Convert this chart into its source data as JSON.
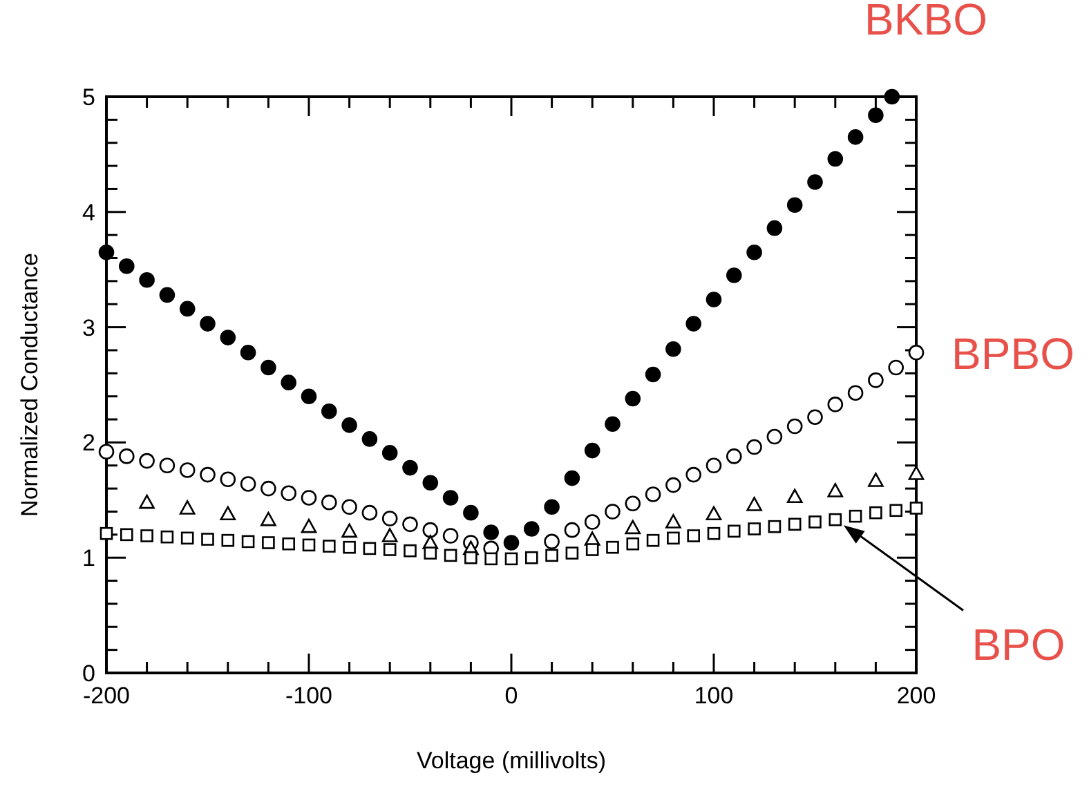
{
  "chart_data": {
    "type": "scatter",
    "xlabel": "Voltage (millivolts)",
    "ylabel": "Normalized Conductance",
    "xlim": [
      -200,
      200
    ],
    "ylim": [
      0,
      5
    ],
    "xticks": [
      -200,
      {
        "value": -180,
        "label": null
      },
      {
        "value": -160,
        "label": null
      },
      {
        "value": -140,
        "label": null
      },
      {
        "value": -120,
        "label": null
      },
      -100,
      {
        "value": -80,
        "label": null
      },
      {
        "value": -60,
        "label": null
      },
      {
        "value": -40,
        "label": null
      },
      {
        "value": -20,
        "label": null
      },
      0,
      {
        "value": 20,
        "label": null
      },
      {
        "value": 40,
        "label": null
      },
      {
        "value": 60,
        "label": null
      },
      {
        "value": 80,
        "label": null
      },
      100,
      {
        "value": 120,
        "label": null
      },
      {
        "value": 140,
        "label": null
      },
      {
        "value": 160,
        "label": null
      },
      {
        "value": 180,
        "label": null
      },
      200
    ],
    "yticks": [
      0,
      {
        "value": 0.2,
        "label": null
      },
      {
        "value": 0.4,
        "label": null
      },
      {
        "value": 0.6,
        "label": null
      },
      {
        "value": 0.8,
        "label": null
      },
      1,
      {
        "value": 1.2,
        "label": null
      },
      {
        "value": 1.4,
        "label": null
      },
      {
        "value": 1.6,
        "label": null
      },
      {
        "value": 1.8,
        "label": null
      },
      2,
      {
        "value": 2.2,
        "label": null
      },
      {
        "value": 2.4,
        "label": null
      },
      {
        "value": 2.6,
        "label": null
      },
      {
        "value": 2.8,
        "label": null
      },
      3,
      {
        "value": 3.2,
        "label": null
      },
      {
        "value": 3.4,
        "label": null
      },
      {
        "value": 3.6,
        "label": null
      },
      {
        "value": 3.8,
        "label": null
      },
      4,
      {
        "value": 4.2,
        "label": null
      },
      {
        "value": 4.4,
        "label": null
      },
      {
        "value": 4.6,
        "label": null
      },
      {
        "value": 4.8,
        "label": null
      },
      5
    ],
    "grid": false,
    "legend": "right",
    "series": [
      {
        "name": "BKBO",
        "color": "#000000",
        "marker": "circle",
        "x": [
          -200,
          -190,
          -180,
          -170,
          -160,
          -150,
          -140,
          -130,
          -120,
          -110,
          -100,
          -90,
          -80,
          -70,
          -60,
          -50,
          -40,
          -30,
          -20,
          -10,
          0,
          10,
          20,
          30,
          40,
          50,
          60,
          70,
          80,
          90,
          100,
          110,
          120,
          130,
          140,
          150,
          160,
          170,
          180,
          188
        ],
        "values": [
          3.65,
          3.53,
          3.41,
          3.28,
          3.16,
          3.03,
          2.91,
          2.78,
          2.65,
          2.52,
          2.4,
          2.27,
          2.15,
          2.03,
          1.91,
          1.78,
          1.65,
          1.52,
          1.39,
          1.22,
          1.13,
          1.25,
          1.44,
          1.69,
          1.93,
          2.16,
          2.38,
          2.59,
          2.81,
          3.03,
          3.24,
          3.45,
          3.65,
          3.86,
          4.06,
          4.26,
          4.46,
          4.65,
          4.84,
          5.0
        ]
      },
      {
        "name": "BPBO",
        "color": "#000000",
        "marker": "circle",
        "x": [
          -200,
          -190,
          -180,
          -170,
          -160,
          -150,
          -140,
          -130,
          -120,
          -110,
          -100,
          -90,
          -80,
          -70,
          -60,
          -50,
          -40,
          -30,
          -20,
          -10,
          0,
          10,
          20,
          30,
          40,
          50,
          60,
          70,
          80,
          90,
          100,
          110,
          120,
          130,
          140,
          150,
          160,
          170,
          180,
          190,
          200
        ],
        "values": [
          1.92,
          1.88,
          1.84,
          1.8,
          1.76,
          1.72,
          1.68,
          1.64,
          1.6,
          1.56,
          1.52,
          1.48,
          1.44,
          1.39,
          1.34,
          1.29,
          1.24,
          1.19,
          1.13,
          1.08,
          null,
          null,
          1.14,
          1.24,
          1.31,
          1.4,
          1.47,
          1.55,
          1.63,
          1.72,
          1.8,
          1.88,
          1.96,
          2.05,
          2.14,
          2.22,
          2.33,
          2.43,
          2.54,
          2.65,
          2.78
        ]
      },
      {
        "color": "#000000",
        "marker": "triangle",
        "x": [
          -180,
          -160,
          -140,
          -120,
          -100,
          -80,
          -60,
          -40,
          -20,
          0,
          20,
          40,
          60,
          80,
          100,
          120,
          140,
          160,
          180,
          200
        ],
        "values": [
          1.48,
          1.43,
          1.38,
          1.33,
          1.27,
          1.23,
          1.19,
          1.13,
          1.08,
          null,
          null,
          1.16,
          1.26,
          1.31,
          1.38,
          1.46,
          1.53,
          1.58,
          1.67,
          1.73
        ]
      },
      {
        "name": "BPO",
        "color": "#000000",
        "marker": "square",
        "x": [
          -200,
          -190,
          -180,
          -170,
          -160,
          -150,
          -140,
          -130,
          -120,
          -110,
          -100,
          -90,
          -80,
          -70,
          -60,
          -50,
          -40,
          -30,
          -20,
          -10,
          0,
          10,
          20,
          30,
          40,
          50,
          60,
          70,
          80,
          90,
          100,
          110,
          120,
          130,
          140,
          150,
          160,
          170,
          180,
          190,
          200
        ],
        "values": [
          1.21,
          1.2,
          1.19,
          1.18,
          1.17,
          1.16,
          1.15,
          1.14,
          1.13,
          1.12,
          1.11,
          1.1,
          1.09,
          1.08,
          1.07,
          1.06,
          1.04,
          1.02,
          1.0,
          0.99,
          0.99,
          1.0,
          1.02,
          1.04,
          1.07,
          1.09,
          1.12,
          1.15,
          1.17,
          1.19,
          1.21,
          1.23,
          1.25,
          1.27,
          1.29,
          1.31,
          1.33,
          1.36,
          1.39,
          1.41,
          1.43
        ]
      }
    ]
  }
}
